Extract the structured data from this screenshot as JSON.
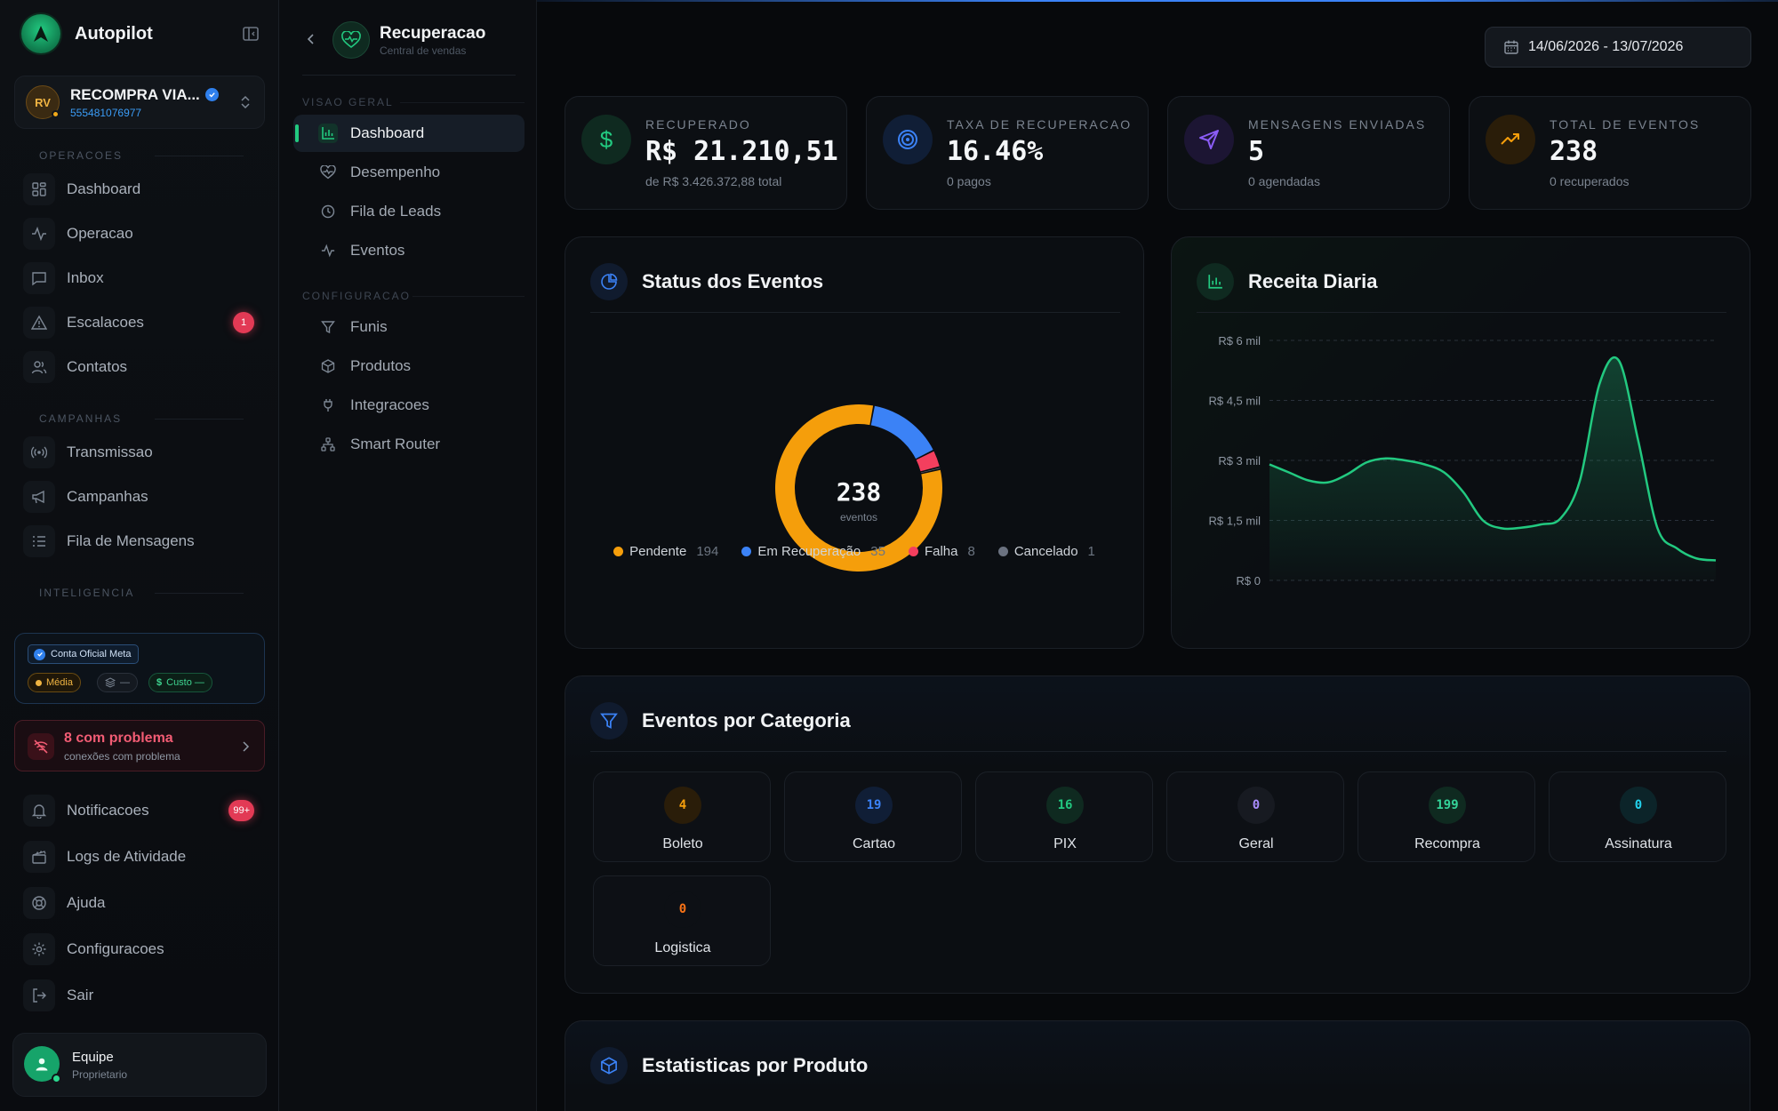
{
  "brand": {
    "name": "Autopilot"
  },
  "account": {
    "initials": "RV",
    "name": "RECOMPRA VIA...",
    "phone": "555481076977"
  },
  "sidebar": {
    "sections": [
      {
        "label": "OPERACOES",
        "items": [
          {
            "label": "Dashboard",
            "icon": "dashboard-icon"
          },
          {
            "label": "Operacao",
            "icon": "activity-icon"
          },
          {
            "label": "Inbox",
            "icon": "message-icon"
          },
          {
            "label": "Escalacoes",
            "icon": "warning-icon",
            "badge": "1"
          },
          {
            "label": "Contatos",
            "icon": "users-icon"
          }
        ]
      },
      {
        "label": "CAMPANHAS",
        "items": [
          {
            "label": "Transmissao",
            "icon": "broadcast-icon"
          },
          {
            "label": "Campanhas",
            "icon": "megaphone-icon"
          },
          {
            "label": "Fila de Mensagens",
            "icon": "list-icon"
          }
        ]
      },
      {
        "label": "INTELIGENCIA",
        "items": []
      }
    ],
    "meta": {
      "official": "Conta Oficial Meta",
      "quality": "Média",
      "tier": "—",
      "cost": "Custo —"
    },
    "problem": {
      "title": "8 com problema",
      "subtitle": "conexões com problema"
    },
    "bottom": [
      {
        "label": "Notificacoes",
        "icon": "bell-icon",
        "badge": "99+"
      },
      {
        "label": "Logs de Atividade",
        "icon": "clapper-icon"
      },
      {
        "label": "Ajuda",
        "icon": "lifebuoy-icon"
      },
      {
        "label": "Configuracoes",
        "icon": "gear-icon"
      },
      {
        "label": "Sair",
        "icon": "logout-icon"
      }
    ],
    "user": {
      "name": "Equipe",
      "role": "Proprietario"
    }
  },
  "subnav": {
    "title": "Recuperacao",
    "subtitle": "Central de vendas",
    "sections": [
      {
        "label": "VISAO GERAL",
        "items": [
          "Dashboard",
          "Desempenho",
          "Fila de Leads",
          "Eventos"
        ]
      },
      {
        "label": "CONFIGURACAO",
        "items": [
          "Funis",
          "Produtos",
          "Integracoes",
          "Smart Router"
        ]
      }
    ]
  },
  "header": {
    "date_range": "14/06/2026 - 13/07/2026"
  },
  "stats": [
    {
      "label": "RECUPERADO",
      "value": "R$ 21.210,51",
      "sub": "de R$ 3.426.372,88 total",
      "color": "#22c980"
    },
    {
      "label": "TAXA DE RECUPERACAO",
      "value": "16.46%",
      "sub": "0 pagos",
      "color": "#3b82f6"
    },
    {
      "label": "MENSAGENS ENVIADAS",
      "value": "5",
      "sub": "0 agendadas",
      "color": "#8b5cf6"
    },
    {
      "label": "TOTAL DE EVENTOS",
      "value": "238",
      "sub": "0 recuperados",
      "color": "#f59e0b"
    }
  ],
  "status_panel": {
    "title": "Status dos Eventos",
    "center_value": "238",
    "center_label": "eventos",
    "legend": [
      {
        "label": "Pendente",
        "count": "194",
        "color": "#f59e0b"
      },
      {
        "label": "Em Recuperação",
        "count": "35",
        "color": "#3b82f6"
      },
      {
        "label": "Falha",
        "count": "8",
        "color": "#f43f5e"
      },
      {
        "label": "Cancelado",
        "count": "1",
        "color": "#6b7280"
      }
    ]
  },
  "revenue_panel": {
    "title": "Receita Diaria"
  },
  "chart_data": [
    {
      "type": "pie",
      "title": "Status dos Eventos",
      "categories": [
        "Pendente",
        "Em Recuperação",
        "Falha",
        "Cancelado"
      ],
      "values": [
        194,
        35,
        8,
        1
      ],
      "colors": [
        "#f59e0b",
        "#3b82f6",
        "#f43f5e",
        "#6b7280"
      ],
      "legend": "bottom"
    },
    {
      "type": "area",
      "title": "Receita Diaria",
      "ylim": [
        0,
        6000
      ],
      "yticks": [
        0,
        1500,
        3000,
        4500,
        6000
      ],
      "ytick_labels": [
        "R$ 0",
        "R$ 1,5 mil",
        "R$ 3 mil",
        "R$ 4,5 mil",
        "R$ 6 mil"
      ],
      "grid": true,
      "values": [
        2900,
        2700,
        2500,
        2450,
        2650,
        2950,
        3050,
        3000,
        2900,
        2700,
        2200,
        1500,
        1300,
        1320,
        1400,
        1550,
        2500,
        4900,
        5500,
        3500,
        1300,
        800,
        550,
        500
      ],
      "color": "#22c980"
    }
  ],
  "categories_panel": {
    "title": "Eventos por Categoria",
    "items": [
      {
        "value": "4",
        "label": "Boleto",
        "color": "#f59e0b"
      },
      {
        "value": "19",
        "label": "Cartao",
        "color": "#3b82f6"
      },
      {
        "value": "16",
        "label": "PIX",
        "color": "#22c980"
      },
      {
        "value": "0",
        "label": "Geral",
        "color": "#a78bfa"
      },
      {
        "value": "199",
        "label": "Recompra",
        "color": "#34d399"
      },
      {
        "value": "0",
        "label": "Assinatura",
        "color": "#22d3ee"
      },
      {
        "value": "0",
        "label": "Logistica",
        "color": "#f97316"
      }
    ]
  },
  "products_panel": {
    "title": "Estatisticas por Produto"
  }
}
